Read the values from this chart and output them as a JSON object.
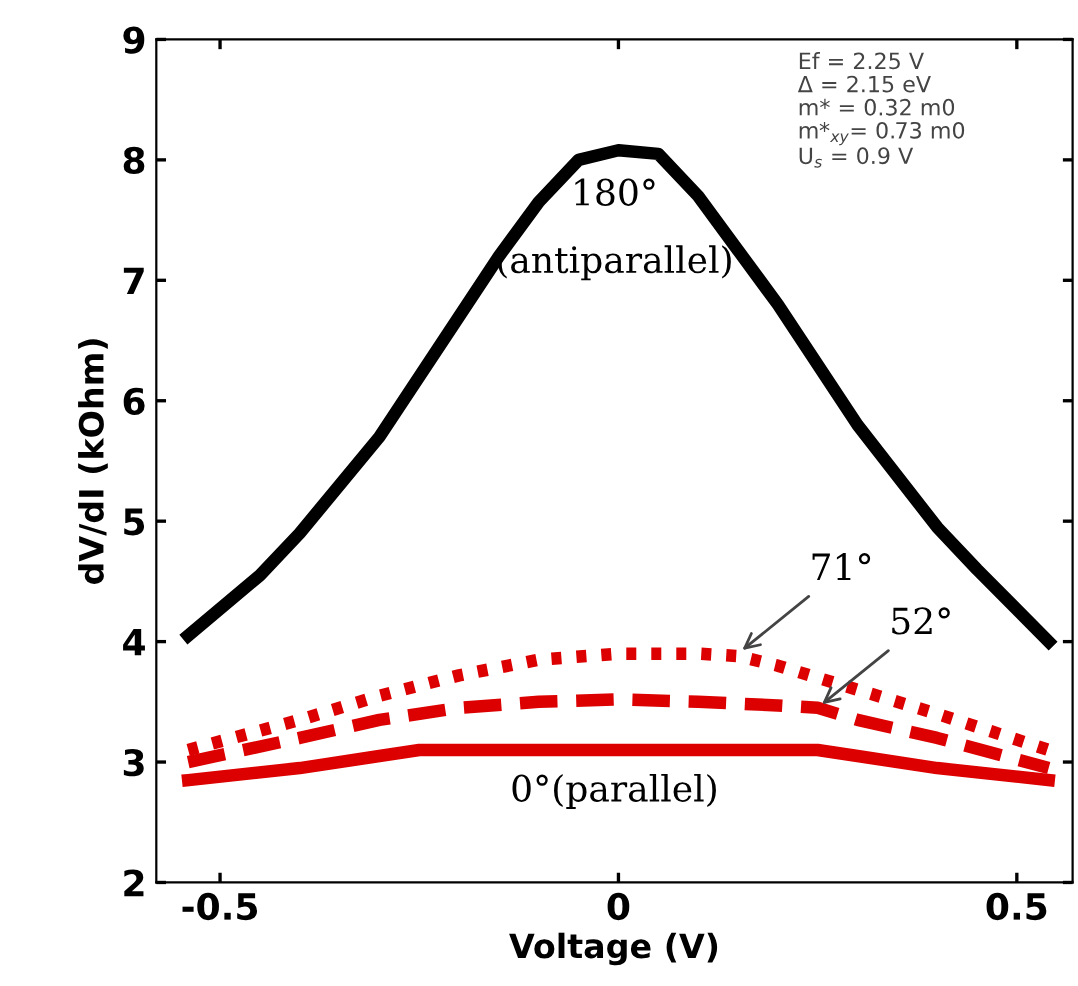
{
  "chart_data": {
    "type": "line",
    "xlabel": "Voltage (V)",
    "ylabel": "dV/dI (kOhm)",
    "xlim": [
      -0.58,
      0.57
    ],
    "ylim": [
      2,
      9
    ],
    "xticks": [
      -0.5,
      0,
      0.5
    ],
    "yticks": [
      2,
      3,
      4,
      5,
      6,
      7,
      8,
      9
    ],
    "grid": false,
    "legend": false,
    "series": [
      {
        "color": "#000000",
        "line_style": "solid",
        "x": [
          -0.54,
          -0.45,
          -0.4,
          -0.3,
          -0.2,
          -0.15,
          -0.1,
          -0.05,
          0,
          0.05,
          0.1,
          0.15,
          0.2,
          0.3,
          0.4,
          0.45,
          0.54
        ],
        "values": [
          4.05,
          4.55,
          4.9,
          5.7,
          6.7,
          7.2,
          7.65,
          8.0,
          8.08,
          8.05,
          7.7,
          7.25,
          6.8,
          5.8,
          4.95,
          4.6,
          4.0
        ]
      },
      {
        "color": "#dd0000",
        "line_style": "dotted",
        "x": [
          -0.54,
          -0.4,
          -0.3,
          -0.2,
          -0.1,
          0,
          0.1,
          0.15,
          0.2,
          0.3,
          0.4,
          0.54
        ],
        "values": [
          3.1,
          3.35,
          3.55,
          3.72,
          3.85,
          3.9,
          3.9,
          3.88,
          3.8,
          3.6,
          3.4,
          3.1
        ]
      },
      {
        "color": "#dd0000",
        "line_style": "dashed",
        "x": [
          -0.54,
          -0.4,
          -0.3,
          -0.2,
          -0.1,
          0,
          0.1,
          0.2,
          0.25,
          0.3,
          0.4,
          0.54
        ],
        "values": [
          3.0,
          3.2,
          3.35,
          3.45,
          3.5,
          3.52,
          3.5,
          3.47,
          3.45,
          3.35,
          3.2,
          2.95
        ]
      },
      {
        "color": "#dd0000",
        "line_style": "solid",
        "x": [
          -0.54,
          -0.4,
          -0.3,
          -0.25,
          -0.1,
          0,
          0.1,
          0.25,
          0.3,
          0.4,
          0.54
        ],
        "values": [
          2.85,
          2.95,
          3.05,
          3.1,
          3.1,
          3.1,
          3.1,
          3.1,
          3.05,
          2.95,
          2.85
        ]
      }
    ],
    "annotations": [
      "180°",
      "(antiparallel)",
      {
        "text": "71°",
        "x": 0.15,
        "y": 3.9
      },
      {
        "text": "52°",
        "x": 0.25,
        "y": 3.45
      },
      "0°(parallel)",
      "Ef = 2.25 V\nΔ = 2.15 eV\nm* = 0.32 m0\nm*$_{xy}$= 0.73 m0\nU$_{s}$ = 0.9 V"
    ]
  }
}
